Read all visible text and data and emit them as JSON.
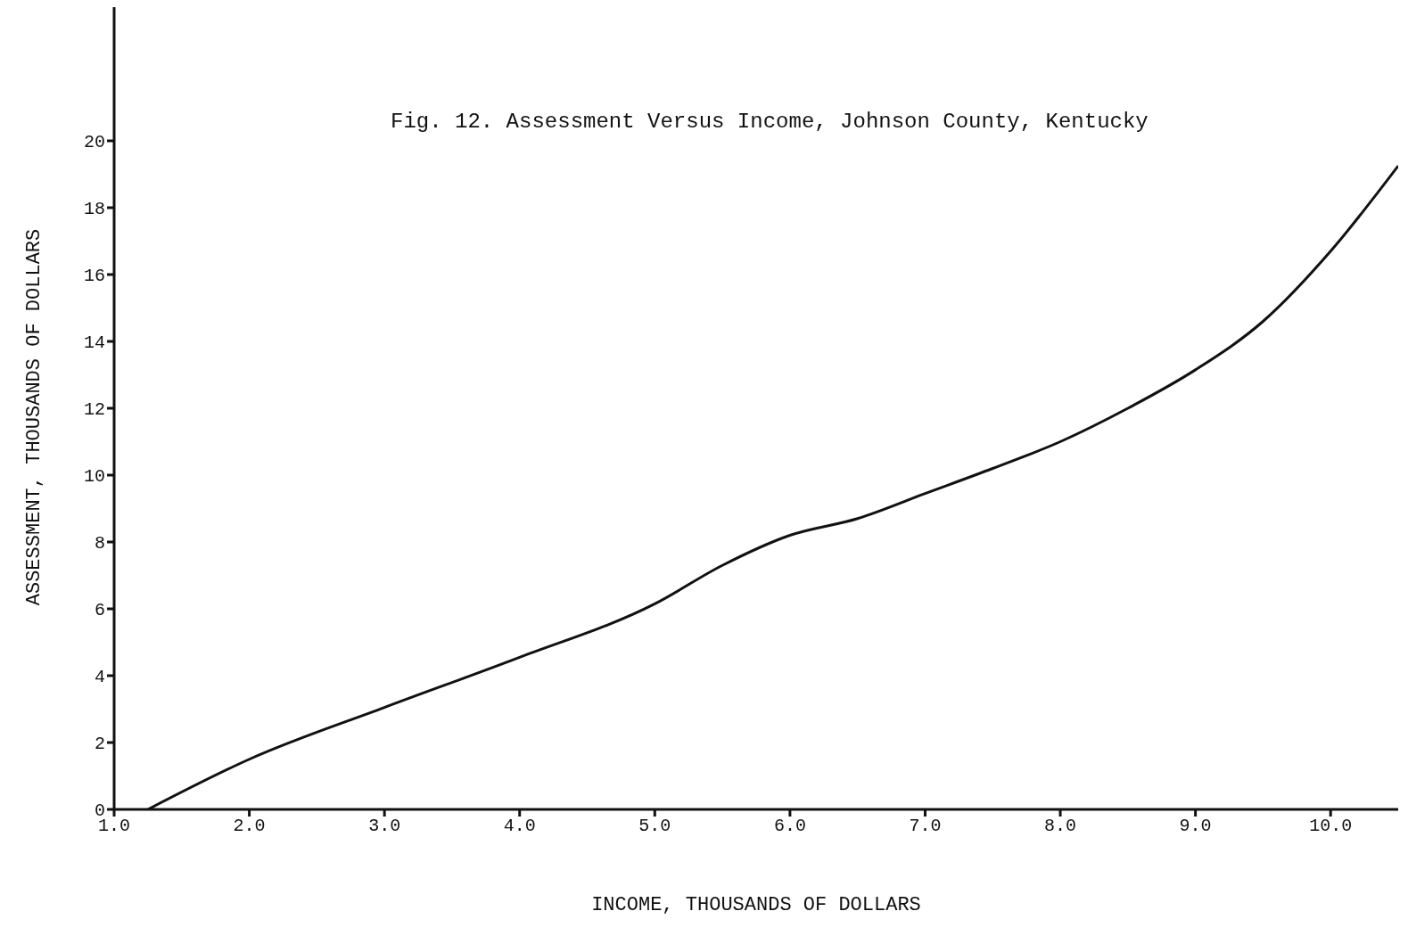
{
  "chart_data": {
    "type": "line",
    "title": "Fig. 12.  Assessment Versus Income, Johnson County, Kentucky",
    "xlabel": "INCOME, THOUSANDS OF DOLLARS",
    "ylabel": "ASSESSMENT, THOUSANDS OF DOLLARS",
    "x": [
      1.25,
      2.0,
      3.0,
      4.0,
      5.0,
      5.5,
      6.0,
      6.5,
      7.0,
      7.5,
      8.0,
      8.5,
      9.0,
      9.5,
      10.0,
      10.5
    ],
    "series": [
      {
        "color": "#111111",
        "values": [
          0,
          1.5,
          3.05,
          4.55,
          6.15,
          7.3,
          8.2,
          8.7,
          9.45,
          10.2,
          11.0,
          12.0,
          13.15,
          14.6,
          16.7,
          19.25
        ]
      }
    ],
    "xlim": [
      1,
      10.5
    ],
    "ylim": [
      0,
      24
    ],
    "xticks": [
      {
        "value": 1,
        "label": "1.0"
      },
      {
        "value": 2,
        "label": "2.0"
      },
      {
        "value": 3,
        "label": "3.0"
      },
      {
        "value": 4,
        "label": "4.0"
      },
      {
        "value": 5,
        "label": "5.0"
      },
      {
        "value": 6,
        "label": "6.0"
      },
      {
        "value": 7,
        "label": "7.0"
      },
      {
        "value": 8,
        "label": "8.0"
      },
      {
        "value": 9,
        "label": "9.0"
      },
      {
        "value": 10,
        "label": "10.0"
      }
    ],
    "yticks": [
      0,
      2,
      4,
      6,
      8,
      10,
      12,
      14,
      16,
      18,
      20
    ],
    "grid": false,
    "legend": false
  }
}
